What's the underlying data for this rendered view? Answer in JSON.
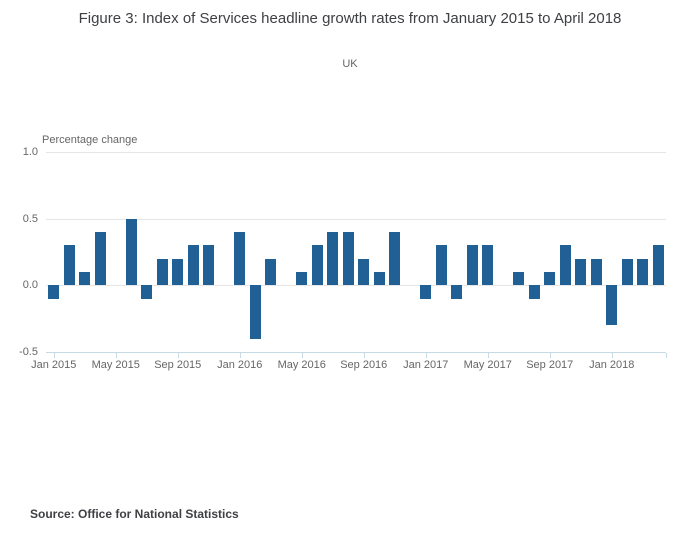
{
  "figure": {
    "title": "Figure 3: Index of Services headline growth rates from January 2015 to April 2018",
    "subtitle": "UK",
    "source": "Source: Office for National Statistics"
  },
  "chart_data": {
    "type": "bar",
    "title": "Figure 3: Index of Services headline growth rates from January 2015 to April 2018",
    "subtitle": "UK",
    "ylabel": "Percentage change",
    "xlabel": "",
    "ylim": [
      -0.5,
      1.0
    ],
    "yticks": [
      1.0,
      0.5,
      0.0,
      -0.5
    ],
    "grid": true,
    "legend": "none",
    "bar_color": "#206095",
    "grid_color": "#e6e6e6",
    "axis_color": "#c6d9e4",
    "categories": [
      "Jan 2015",
      "Feb 2015",
      "Mar 2015",
      "Apr 2015",
      "May 2015",
      "Jun 2015",
      "Jul 2015",
      "Aug 2015",
      "Sep 2015",
      "Oct 2015",
      "Nov 2015",
      "Dec 2015",
      "Jan 2016",
      "Feb 2016",
      "Mar 2016",
      "Apr 2016",
      "May 2016",
      "Jun 2016",
      "Jul 2016",
      "Aug 2016",
      "Sep 2016",
      "Oct 2016",
      "Nov 2016",
      "Dec 2016",
      "Jan 2017",
      "Feb 2017",
      "Mar 2017",
      "Apr 2017",
      "May 2017",
      "Jun 2017",
      "Jul 2017",
      "Aug 2017",
      "Sep 2017",
      "Oct 2017",
      "Nov 2017",
      "Dec 2017",
      "Jan 2018",
      "Feb 2018",
      "Mar 2018",
      "Apr 2018"
    ],
    "values": [
      -0.1,
      0.3,
      0.1,
      0.4,
      0.0,
      0.5,
      -0.1,
      0.2,
      0.2,
      0.3,
      0.3,
      0.0,
      0.4,
      -0.4,
      0.2,
      0.0,
      0.1,
      0.3,
      0.4,
      0.4,
      0.2,
      0.1,
      0.4,
      0.0,
      -0.1,
      0.3,
      -0.1,
      0.3,
      0.3,
      0.0,
      0.1,
      -0.1,
      0.1,
      0.3,
      0.2,
      0.2,
      -0.3,
      0.2,
      0.2,
      0.3
    ],
    "x_tick_labels": [
      "Jan 2015",
      "May 2015",
      "Sep 2015",
      "Jan 2016",
      "May 2016",
      "Sep 2016",
      "Jan 2017",
      "May 2017",
      "Sep 2017",
      "Jan 2018"
    ]
  }
}
